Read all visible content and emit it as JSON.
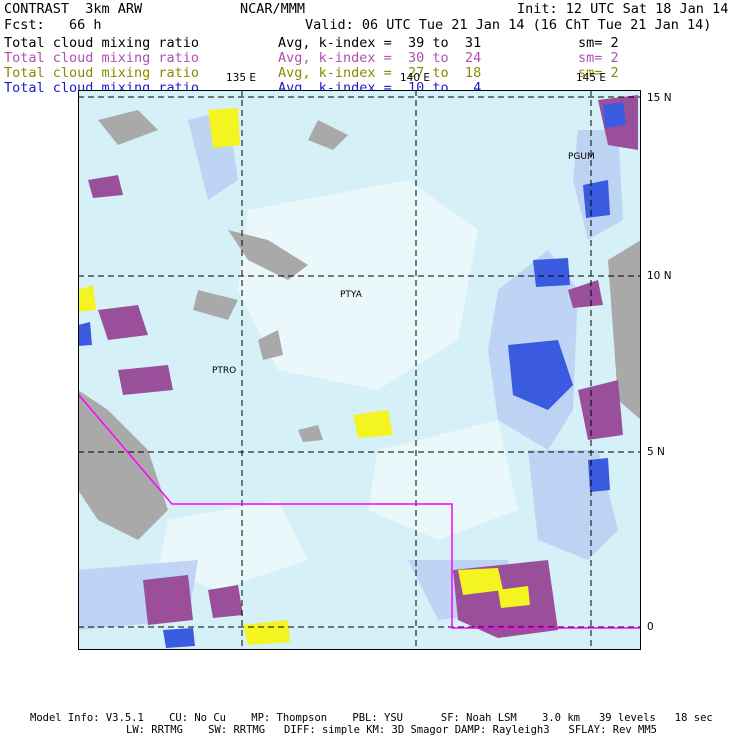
{
  "header": {
    "title_left": "CONTRAST  3km ARW",
    "title_center": "NCAR/MMM",
    "init": "Init: 12 UTC Sat 18 Jan 14",
    "fcst": "Fcst:   66 h",
    "valid": "Valid: 06 UTC Tue 21 Jan 14 (16 ChT Tue 21 Jan 14)"
  },
  "fields": [
    {
      "name": "Total cloud mixing ratio",
      "avg": "Avg, k-index =  39 to  31",
      "sm": "sm= 2",
      "color": "#000000"
    },
    {
      "name": "Total cloud mixing ratio",
      "avg": "Avg, k-index =  30 to  24",
      "sm": "sm= 2",
      "color": "#b050b0"
    },
    {
      "name": "Total cloud mixing ratio",
      "avg": "Avg, k-index =  27 to  18",
      "sm": "sm= 2",
      "color": "#8a8a00"
    },
    {
      "name": "Total cloud mixing ratio",
      "avg": "Avg, k-index =  10 to   4",
      "sm": "",
      "color": "#1a1ad0"
    }
  ],
  "map": {
    "lon_labels": [
      "135 E",
      "140 E",
      "145 E"
    ],
    "lat_labels": [
      "15 N",
      "10 N",
      "5 N",
      "0"
    ],
    "stations": [
      "PGUM",
      "PTYA",
      "PTRO"
    ],
    "colors": {
      "ocean": "#d6f0f8",
      "gray": "#a9a9a9",
      "purple": "#9a4f9a",
      "yellow": "#f4f420",
      "blue": "#3a5be0",
      "boundary": "#ff00ff"
    }
  },
  "footer": {
    "line1": "Model Info: V3.5.1    CU: No Cu    MP: Thompson    PBL: YSU      SF: Noah LSM    3.0 km   39 levels   18 sec",
    "line2": "LW: RRTMG    SW: RRTMG   DIFF: simple KM: 3D Smagor DAMP: Rayleigh3   SFLAY: Rev MM5"
  }
}
